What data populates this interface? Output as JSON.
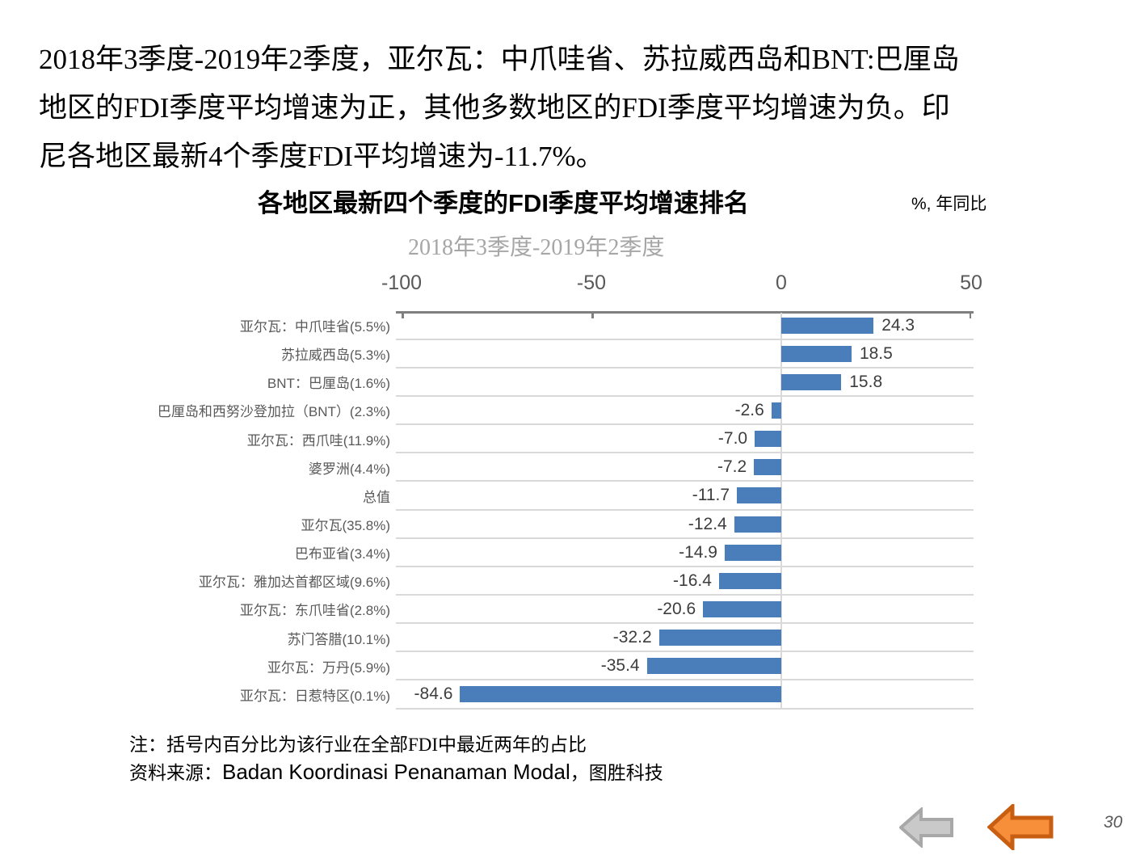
{
  "slide": {
    "paragraph_lines": [
      "2018年3季度-2019年2季度，亚尔瓦：中爪哇省、苏拉威西岛和BNT:巴厘岛",
      "地区的FDI季度平均增速为正，其他多数地区的FDI季度平均增速为负。印",
      "尼各地区最新4个季度FDI平均增速为-11.7%。"
    ],
    "page_number": "30"
  },
  "chart_data": {
    "type": "bar",
    "orientation": "horizontal",
    "title": "各地区最新四个季度的FDI季度平均增速排名",
    "unit_label": "%, 年同比",
    "subtitle": "2018年3季度-2019年2季度",
    "xlim": [
      -100,
      50
    ],
    "x_ticks": [
      -100,
      -50,
      0,
      50
    ],
    "categories": [
      "亚尔瓦：中爪哇省(5.5%)",
      "苏拉威西岛(5.3%)",
      "BNT：巴厘岛(1.6%)",
      "巴厘岛和西努沙登加拉（BNT）(2.3%)",
      "亚尔瓦：西爪哇(11.9%)",
      "婆罗洲(4.4%)",
      "总值",
      "亚尔瓦(35.8%)",
      "巴布亚省(3.4%)",
      "亚尔瓦：雅加达首都区域(9.6%)",
      "亚尔瓦：东爪哇省(2.8%)",
      "苏门答腊(10.1%)",
      "亚尔瓦：万丹(5.9%)",
      "亚尔瓦：日惹特区(0.1%)"
    ],
    "values": [
      24.3,
      18.5,
      15.8,
      -2.6,
      -7.0,
      -7.2,
      -11.7,
      -12.4,
      -14.9,
      -16.4,
      -20.6,
      -32.2,
      -35.4,
      -84.6
    ],
    "value_labels_shown": true,
    "legend": "none",
    "gridlines": "row-separators-and-zero-line",
    "bar_color": "#4A7EBB",
    "gridline_color": "#D9D9D9",
    "axis_line_color": "#7F7F7F",
    "label_color": "#595959"
  },
  "notes": {
    "note": "注：括号内百分比为该行业在全部FDI中最近两年的占比",
    "source_prefix": "资料来源：",
    "source_latin": "Badan Koordinasi Penanaman Modal",
    "source_suffix": "，图胜科技"
  },
  "nav": {
    "colors": {
      "gray_fill": "#C9C9C9",
      "gray_stroke": "#A8A8A8",
      "orange_fill": "#F78F3A",
      "orange_stroke": "#C85E12"
    }
  }
}
